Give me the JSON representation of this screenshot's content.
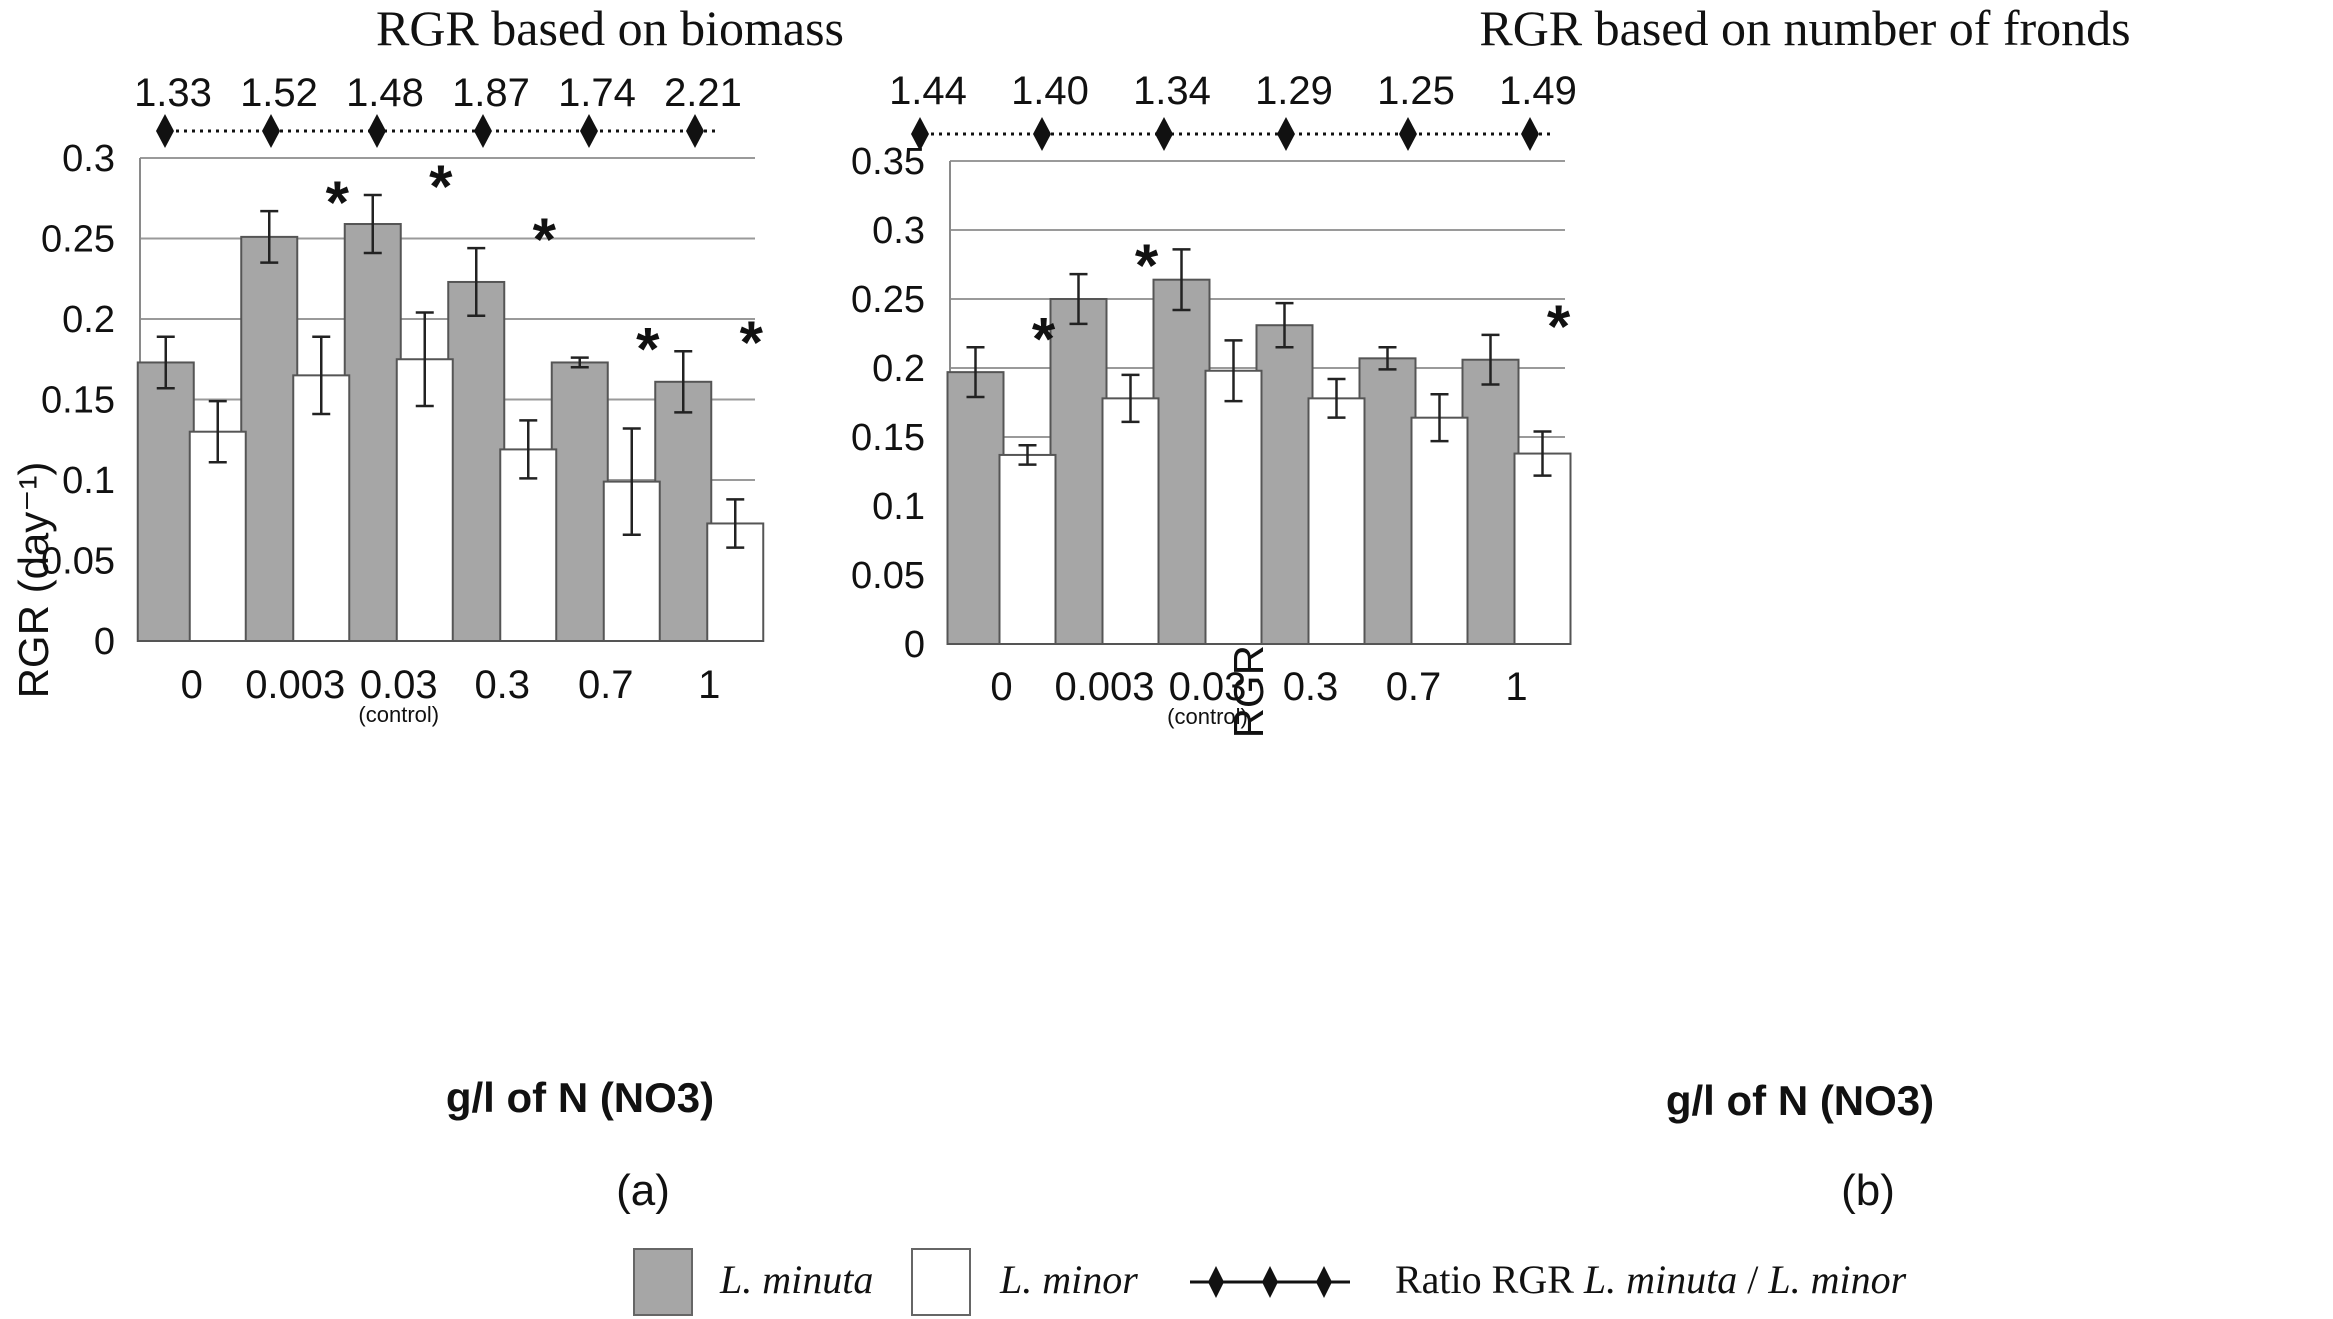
{
  "chart_data": [
    {
      "type": "bar",
      "title": "RGR based on biomass",
      "panel_label": "(a)",
      "xlabel": "g/l of N (NO3)",
      "ylabel": "RGR (day⁻¹)",
      "ylim": [
        0,
        0.3
      ],
      "yticks": [
        "0",
        "0.05",
        "0.1",
        "0.15",
        "0.2",
        "0.25",
        "0.3"
      ],
      "categories": [
        "0",
        "0.003",
        "0.03",
        "0.3",
        "0.7",
        "1"
      ],
      "category_sublabels": [
        "",
        "",
        "(control)",
        "",
        "",
        ""
      ],
      "grid": true,
      "series": [
        {
          "name": "L. minuta",
          "color": "#a6a6a6",
          "values": [
            0.173,
            0.251,
            0.259,
            0.223,
            0.173,
            0.161
          ],
          "error": [
            0.016,
            0.016,
            0.018,
            0.021,
            0.003,
            0.019
          ]
        },
        {
          "name": "L. minor",
          "color": "#ffffff",
          "values": [
            0.13,
            0.165,
            0.175,
            0.119,
            0.099,
            0.073
          ],
          "error": [
            0.019,
            0.024,
            0.029,
            0.018,
            0.033,
            0.015
          ]
        }
      ],
      "significance": [
        "",
        "*",
        "*",
        "*",
        "*",
        "*"
      ],
      "ratio": {
        "name": "Ratio RGR L. minuta / L. minor",
        "values": [
          "1.33",
          "1.52",
          "1.48",
          "1.87",
          "1.74",
          "2.21"
        ]
      }
    },
    {
      "type": "bar",
      "title": "RGR based on number of fronds",
      "panel_label": "(b)",
      "xlabel": "g/l of N (NO3)",
      "ylabel": "RGR (day⁻¹)",
      "ylim": [
        0,
        0.35
      ],
      "yticks": [
        "0",
        "0.05",
        "0.1",
        "0.15",
        "0.2",
        "0.25",
        "0.3",
        "0.35"
      ],
      "categories": [
        "0",
        "0.003",
        "0.03",
        "0.3",
        "0.7",
        "1"
      ],
      "category_sublabels": [
        "",
        "",
        "(control)",
        "",
        "",
        ""
      ],
      "grid": true,
      "series": [
        {
          "name": "L. minuta",
          "color": "#a6a6a6",
          "values": [
            0.197,
            0.25,
            0.264,
            0.231,
            0.207,
            0.206
          ],
          "error": [
            0.018,
            0.018,
            0.022,
            0.016,
            0.008,
            0.018
          ]
        },
        {
          "name": "L. minor",
          "color": "#ffffff",
          "values": [
            0.137,
            0.178,
            0.198,
            0.178,
            0.164,
            0.138
          ],
          "error": [
            0.007,
            0.017,
            0.022,
            0.014,
            0.017,
            0.016
          ]
        }
      ],
      "significance": [
        "*",
        "*",
        "",
        "",
        "",
        "*"
      ],
      "ratio": {
        "name": "Ratio RGR L. minuta / L. minor",
        "values": [
          "1.44",
          "1.40",
          "1.34",
          "1.29",
          "1.25",
          "1.49"
        ]
      }
    }
  ],
  "legend": {
    "position": "bottom",
    "items": [
      {
        "label": "L. minuta",
        "kind": "bar",
        "color": "#a6a6a6"
      },
      {
        "label": "L. minor",
        "kind": "bar",
        "color": "#ffffff"
      },
      {
        "label_prefix": "Ratio RGR ",
        "label_a": "L. minuta",
        "label_sep": " / ",
        "label_b": "L. minor",
        "kind": "ratio-line"
      }
    ]
  }
}
